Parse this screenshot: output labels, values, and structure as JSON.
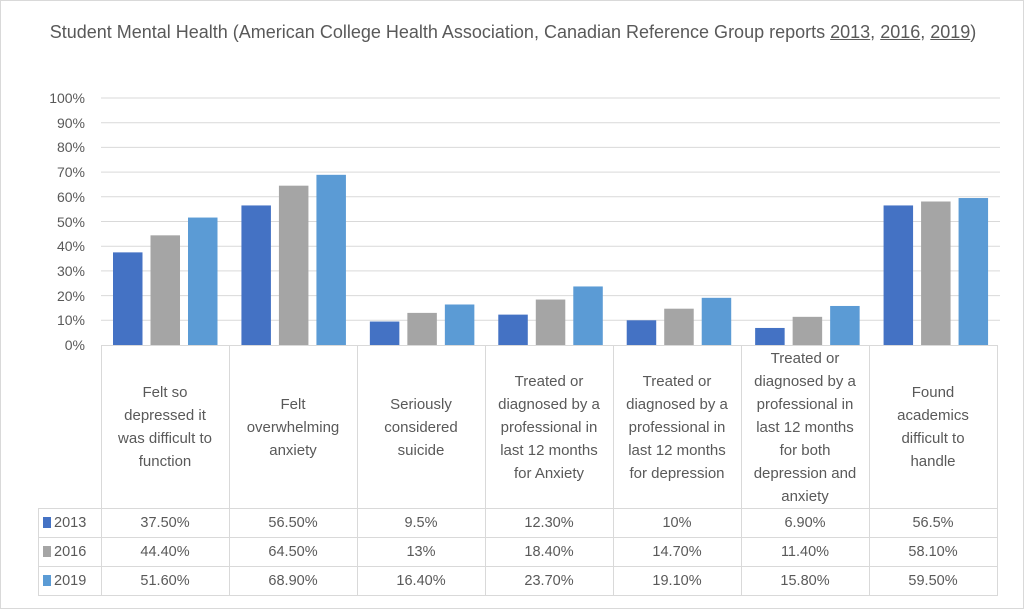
{
  "chart_data": {
    "type": "bar",
    "title_prefix": "Student Mental Health (American College Health Association, Canadian Reference Group reports ",
    "title_links": [
      "2013",
      "2016",
      "2019"
    ],
    "title_suffix": ")",
    "ylim": [
      0,
      100
    ],
    "yticks": [
      "0%",
      "10%",
      "20%",
      "30%",
      "40%",
      "50%",
      "60%",
      "70%",
      "80%",
      "90%",
      "100%"
    ],
    "grid": true,
    "legend_placement": "data-table",
    "categories": [
      "Felt so\ndepressed it\nwas difficult to\nfunction",
      "Felt\noverwhelming\nanxiety",
      "Seriously\nconsidered\nsuicide",
      "Treated or\ndiagnosed by a\nprofessional in\nlast 12 months\nfor Anxiety",
      "Treated or\ndiagnosed by a\nprofessional in\nlast 12 months\nfor depression",
      "Treated or\ndiagnosed by a\nprofessional in\nlast 12 months\nfor both\ndepression and\nanxiety",
      "Found\nacademics\ndifficult to\nhandle"
    ],
    "series": [
      {
        "name": "2013",
        "color": "#4472C4",
        "values": [
          37.5,
          56.5,
          9.5,
          12.3,
          10,
          6.9,
          56.5
        ],
        "labels": [
          "37.50%",
          "56.50%",
          "9.5%",
          "12.30%",
          "10%",
          "6.90%",
          "56.5%"
        ]
      },
      {
        "name": "2016",
        "color": "#A5A5A5",
        "values": [
          44.4,
          64.5,
          13,
          18.4,
          14.7,
          11.4,
          58.1
        ],
        "labels": [
          "44.40%",
          "64.50%",
          "13%",
          "18.40%",
          "14.70%",
          "11.40%",
          "58.10%"
        ]
      },
      {
        "name": "2019",
        "color": "#5B9BD5",
        "values": [
          51.6,
          68.9,
          16.4,
          23.7,
          19.1,
          15.8,
          59.5
        ],
        "labels": [
          "51.60%",
          "68.90%",
          "16.40%",
          "23.70%",
          "19.10%",
          "15.80%",
          "59.50%"
        ]
      }
    ]
  }
}
